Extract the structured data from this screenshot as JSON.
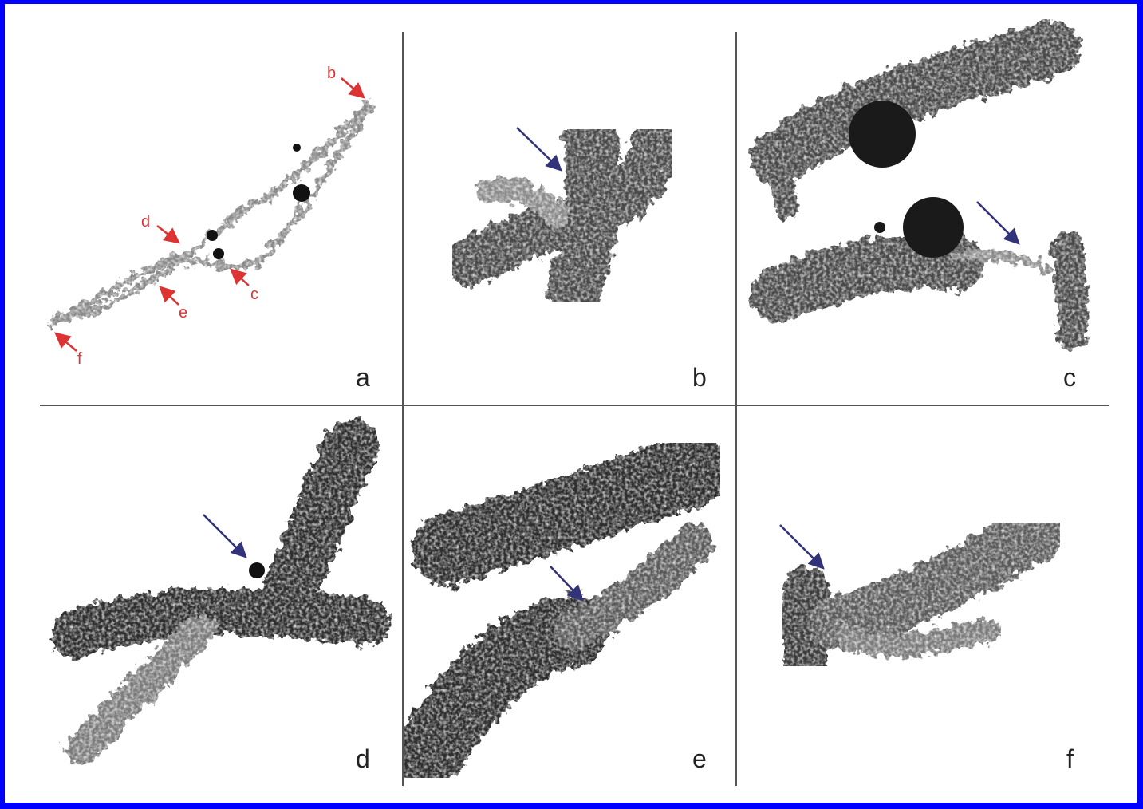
{
  "panels": [
    {
      "label": "a",
      "annotations": [
        "b",
        "d",
        "c",
        "e",
        "f"
      ]
    },
    {
      "label": "b"
    },
    {
      "label": "c"
    },
    {
      "label": "d"
    },
    {
      "label": "e"
    },
    {
      "label": "f"
    }
  ]
}
